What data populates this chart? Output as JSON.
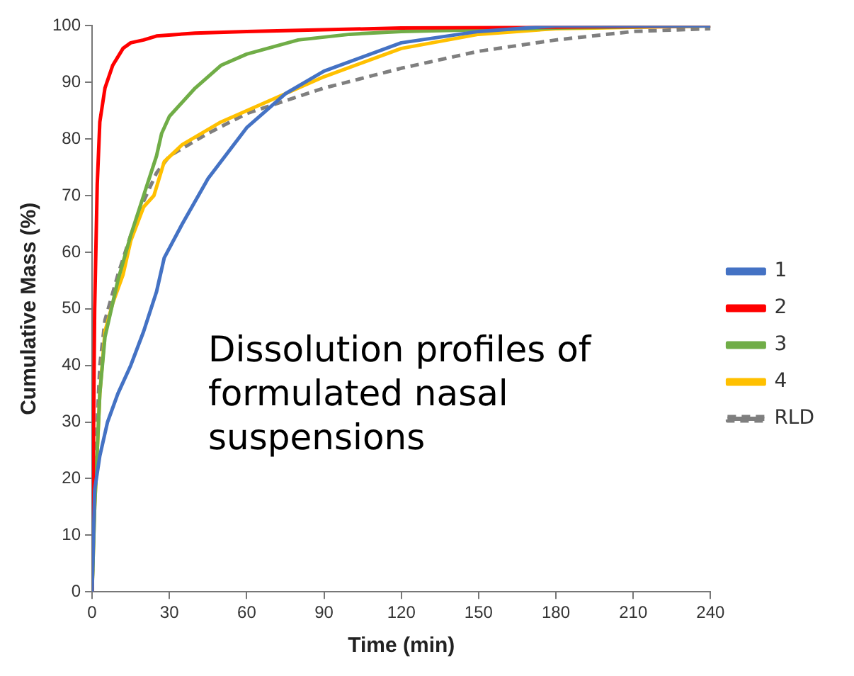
{
  "chart_data": {
    "type": "line",
    "xlabel": "Time (min)",
    "ylabel": "Cumulative Mass (%)",
    "xlim": [
      0,
      240
    ],
    "xticks": [
      0,
      30,
      60,
      90,
      120,
      150,
      180,
      210,
      240
    ],
    "ylim": [
      0,
      100
    ],
    "yticks": [
      0,
      10,
      20,
      30,
      40,
      50,
      60,
      70,
      80,
      90,
      100
    ],
    "grid": false,
    "legend": "right",
    "marker": "none",
    "annotations": [
      "Dissolution profiles of formulated nasal suspensions"
    ],
    "series": [
      {
        "name": "1",
        "color": "#4472c4",
        "x": [
          0,
          1,
          3,
          6,
          10,
          15,
          20,
          25,
          28,
          35,
          45,
          60,
          75,
          90,
          120,
          150,
          180,
          240
        ],
        "values": [
          0,
          18,
          24,
          30,
          35,
          40,
          46,
          53,
          59,
          65,
          73,
          82,
          88,
          92,
          97,
          99,
          100,
          100
        ]
      },
      {
        "name": "2",
        "color": "#ff0000",
        "x": [
          0,
          1,
          2,
          3,
          5,
          8,
          12,
          15,
          20,
          25,
          40,
          60,
          120,
          240
        ],
        "values": [
          0,
          50,
          72,
          83,
          89,
          93,
          96,
          97,
          97.5,
          98.2,
          98.7,
          99,
          99.6,
          100
        ]
      },
      {
        "name": "3",
        "color": "#70ad47",
        "x": [
          0,
          1,
          3,
          5,
          10,
          15,
          20,
          25,
          27,
          30,
          40,
          50,
          60,
          80,
          100,
          120,
          180,
          240
        ],
        "values": [
          0,
          15,
          35,
          45,
          55,
          63,
          70,
          77,
          81,
          84,
          89,
          93,
          95,
          97.5,
          98.5,
          99,
          99.6,
          100
        ]
      },
      {
        "name": "4",
        "color": "#ffc000",
        "x": [
          0,
          1,
          3,
          5,
          8,
          12,
          15,
          20,
          24,
          26,
          28,
          35,
          50,
          70,
          90,
          120,
          150,
          180,
          240
        ],
        "values": [
          0,
          15,
          35,
          46,
          51,
          56,
          62,
          68,
          70,
          73,
          76,
          79,
          83,
          87,
          91,
          96,
          98.5,
          99.5,
          100
        ]
      },
      {
        "name": "RLD",
        "color": "#7f7f7f",
        "line_style": "dashed",
        "x": [
          0,
          1,
          3,
          5,
          10,
          15,
          20,
          25,
          30,
          45,
          60,
          90,
          120,
          150,
          180,
          210,
          240
        ],
        "values": [
          0,
          20,
          40,
          48,
          56,
          63,
          69,
          74,
          77,
          81,
          84.5,
          89,
          92.5,
          95.5,
          97.5,
          99,
          99.5
        ]
      }
    ]
  }
}
